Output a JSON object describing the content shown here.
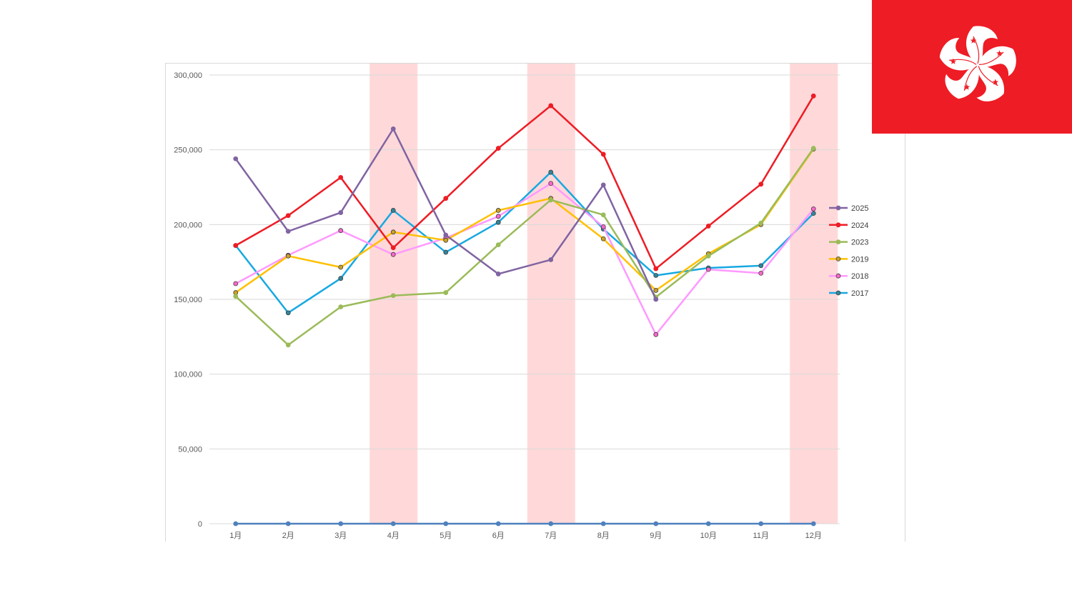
{
  "flag": {
    "name": "Hong Kong flag",
    "red": "#ee1c25",
    "white": "#ffffff"
  },
  "chart_data": {
    "type": "line",
    "categories": [
      "1月",
      "2月",
      "3月",
      "4月",
      "5月",
      "6月",
      "7月",
      "8月",
      "9月",
      "10月",
      "11月",
      "12月"
    ],
    "ylim": [
      0,
      300000
    ],
    "yticks": [
      0,
      50000,
      100000,
      150000,
      200000,
      250000,
      300000
    ],
    "ytick_labels": [
      "0",
      "50,000",
      "100,000",
      "150,000",
      "200,000",
      "250,000",
      "300,000"
    ],
    "grid": true,
    "legend_position": "right",
    "highlighted_categories": [
      "4月",
      "7月",
      "12月"
    ],
    "highlight_color": "#ffd9d9",
    "series": [
      {
        "name": "2025",
        "color": "#8064a2",
        "marker_fill": "#8064a2",
        "values": [
          244000,
          195500,
          208000,
          264000,
          193000,
          167000,
          176500,
          226500,
          150000,
          null,
          null,
          null
        ]
      },
      {
        "name": "2024",
        "color": "#ee1c25",
        "marker_fill": "#ee1c25",
        "values": [
          186000,
          206000,
          231500,
          184500,
          217500,
          251000,
          279500,
          247000,
          170500,
          199000,
          227000,
          286000
        ]
      },
      {
        "name": "2023",
        "color": "#9bbb59",
        "marker_fill": "#9bbb59",
        "values": [
          152000,
          119500,
          145000,
          152500,
          154500,
          186500,
          216500,
          206500,
          151500,
          179000,
          201000,
          251000
        ]
      },
      {
        "name": "2019",
        "color": "#ffc000",
        "marker_fill": "#c9a227",
        "values": [
          154500,
          179000,
          171500,
          195000,
          189500,
          209500,
          217500,
          190500,
          156000,
          180500,
          200000,
          250500
        ]
      },
      {
        "name": "2018",
        "color": "#ff99ff",
        "marker_fill": "#ff66cc",
        "values": [
          160500,
          179500,
          196000,
          180000,
          191000,
          205500,
          227500,
          198500,
          126500,
          170000,
          167500,
          210500
        ]
      },
      {
        "name": "2017",
        "color": "#17a9e1",
        "marker_fill": "#31859c",
        "values": [
          186000,
          141000,
          164000,
          209500,
          181500,
          201500,
          235000,
          197000,
          166000,
          171000,
          172500,
          207500
        ]
      },
      {
        "name": "",
        "color": "#4f81bd",
        "marker_fill": "#4f81bd",
        "in_legend": false,
        "values": [
          0,
          0,
          0,
          0,
          0,
          0,
          0,
          0,
          0,
          0,
          0,
          0
        ]
      }
    ]
  }
}
